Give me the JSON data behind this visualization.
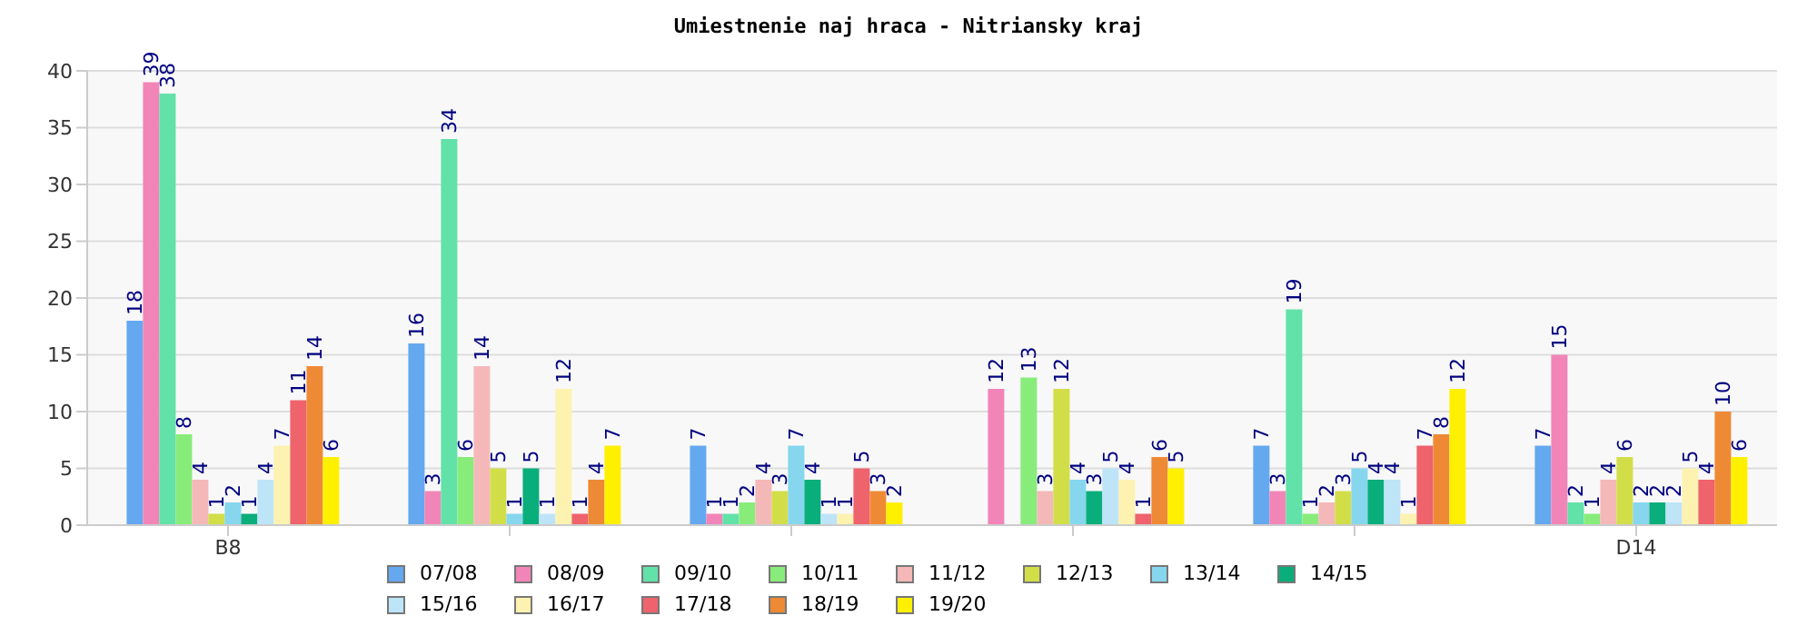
{
  "chart_data": {
    "type": "bar",
    "title": "Umiestnenie naj hraca - Nitriansky kraj",
    "categories": [
      "B8",
      null,
      null,
      null,
      null,
      "D14"
    ],
    "ylim": [
      0,
      40
    ],
    "yticks": [
      0,
      5,
      10,
      15,
      20,
      25,
      30,
      35,
      40
    ],
    "grid": "y",
    "legend": "bottom",
    "data_labels": true,
    "series": [
      {
        "name": "07/08",
        "color": "#64a8f0",
        "values": [
          18,
          16,
          7,
          null,
          7,
          7
        ]
      },
      {
        "name": "08/09",
        "color": "#f285b8",
        "values": [
          39,
          3,
          1,
          12,
          3,
          15
        ]
      },
      {
        "name": "09/10",
        "color": "#62e2a8",
        "values": [
          38,
          34,
          1,
          null,
          19,
          2
        ]
      },
      {
        "name": "10/11",
        "color": "#88ec7a",
        "values": [
          8,
          6,
          2,
          13,
          1,
          1
        ]
      },
      {
        "name": "11/12",
        "color": "#f5b8b8",
        "values": [
          4,
          14,
          4,
          3,
          2,
          4
        ]
      },
      {
        "name": "12/13",
        "color": "#d2de48",
        "values": [
          1,
          5,
          3,
          12,
          3,
          6
        ]
      },
      {
        "name": "13/14",
        "color": "#86d6ee",
        "values": [
          2,
          1,
          7,
          4,
          5,
          2
        ]
      },
      {
        "name": "14/15",
        "color": "#0aae7a",
        "values": [
          1,
          5,
          4,
          3,
          4,
          2
        ]
      },
      {
        "name": "15/16",
        "color": "#bee4f8",
        "values": [
          4,
          1,
          1,
          5,
          4,
          2
        ]
      },
      {
        "name": "16/17",
        "color": "#fdf2b0",
        "values": [
          7,
          12,
          1,
          4,
          1,
          5
        ]
      },
      {
        "name": "17/18",
        "color": "#ee636c",
        "values": [
          11,
          1,
          5,
          1,
          7,
          4
        ]
      },
      {
        "name": "18/19",
        "color": "#ee8a36",
        "values": [
          14,
          4,
          3,
          6,
          8,
          10
        ]
      },
      {
        "name": "19/20",
        "color": "#fff000",
        "values": [
          6,
          7,
          2,
          5,
          12,
          6
        ]
      }
    ]
  }
}
